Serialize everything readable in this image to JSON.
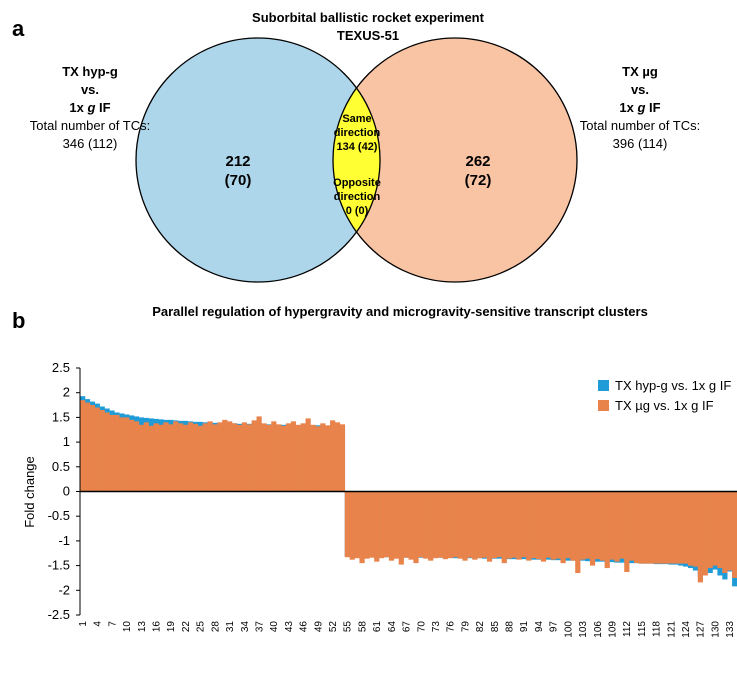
{
  "venn": {
    "panel_label": "a",
    "title": [
      "Suborbital ballistic rocket experiment",
      "TEXUS-51"
    ],
    "left": {
      "title": "TX hyp-g",
      "vs": "vs.",
      "condition": [
        "1x",
        "g",
        "IF"
      ],
      "total_label": "Total number of TCs:",
      "total": "346 (112)",
      "count": "212",
      "count_sub": "(70)"
    },
    "right": {
      "title": "TX µg",
      "vs": "vs.",
      "condition": [
        "1x",
        "g",
        "IF"
      ],
      "total_label": "Total number of TCs:",
      "total": "396 (114)",
      "count": "262",
      "count_sub": "(72)"
    },
    "overlap": {
      "same": [
        "Same",
        "direction"
      ],
      "same_count": "134 (42)",
      "opposite": [
        "Opposite",
        "direction"
      ],
      "opposite_count": "0 (0)"
    }
  },
  "chart_data": {
    "type": "bar",
    "panel_label": "b",
    "title": "Parallel regulation of hypergravity and microgravity-sensitive transcript clusters",
    "y_label": "Fold change",
    "categories": [
      1,
      null,
      null,
      4,
      null,
      null,
      7,
      null,
      null,
      10,
      null,
      null,
      13,
      null,
      null,
      16,
      null,
      null,
      19,
      null,
      null,
      22,
      null,
      null,
      25,
      null,
      null,
      28,
      null,
      null,
      31,
      null,
      null,
      34,
      null,
      null,
      37,
      null,
      null,
      40,
      null,
      null,
      43,
      null,
      null,
      46,
      null,
      null,
      49,
      null,
      null,
      52,
      null,
      null,
      55,
      null,
      null,
      58,
      null,
      null,
      61,
      null,
      null,
      64,
      null,
      null,
      67,
      null,
      null,
      70,
      null,
      null,
      73,
      null,
      null,
      76,
      null,
      null,
      79,
      null,
      null,
      82,
      null,
      null,
      85,
      null,
      null,
      88,
      null,
      null,
      91,
      null,
      null,
      94,
      null,
      null,
      97,
      null,
      null,
      100,
      null,
      null,
      103,
      null,
      null,
      106,
      null,
      null,
      109,
      null,
      null,
      112,
      null,
      null,
      115,
      null,
      null,
      118,
      null,
      null,
      121,
      null,
      null,
      124,
      null,
      null,
      127,
      null,
      null,
      130,
      null,
      null,
      133,
      null
    ],
    "series": [
      {
        "name": "TX hyp-g vs. 1x g IF",
        "color": "#1f9bd7",
        "values": [
          1.93,
          1.87,
          1.82,
          1.78,
          1.72,
          1.68,
          1.64,
          1.6,
          1.58,
          1.56,
          1.54,
          1.52,
          1.5,
          1.49,
          1.48,
          1.47,
          1.46,
          1.45,
          1.45,
          1.44,
          1.43,
          1.43,
          1.42,
          1.41,
          1.41,
          1.4,
          1.4,
          1.39,
          1.39,
          1.38,
          1.38,
          1.38,
          1.37,
          1.37,
          1.37,
          1.36,
          1.36,
          1.36,
          1.36,
          1.35,
          1.35,
          1.35,
          1.35,
          1.35,
          1.34,
          1.34,
          1.34,
          1.34,
          1.34,
          1.33,
          1.33,
          1.33,
          1.33,
          1.32,
          -1.32,
          -1.32,
          -1.32,
          -1.33,
          -1.33,
          -1.33,
          -1.33,
          -1.33,
          -1.33,
          -1.33,
          -1.34,
          -1.34,
          -1.34,
          -1.34,
          -1.34,
          -1.34,
          -1.34,
          -1.34,
          -1.34,
          -1.34,
          -1.34,
          -1.34,
          -1.35,
          -1.35,
          -1.35,
          -1.35,
          -1.35,
          -1.35,
          -1.36,
          -1.36,
          -1.36,
          -1.36,
          -1.36,
          -1.37,
          -1.37,
          -1.37,
          -1.37,
          -1.37,
          -1.38,
          -1.38,
          -1.38,
          -1.38,
          -1.39,
          -1.39,
          -1.39,
          -1.4,
          -1.4,
          -1.4,
          -1.4,
          -1.41,
          -1.41,
          -1.42,
          -1.42,
          -1.43,
          -1.43,
          -1.44,
          -1.44,
          -1.45,
          -1.45,
          -1.45,
          -1.46,
          -1.46,
          -1.46,
          -1.47,
          -1.47,
          -1.47,
          -1.48,
          -1.48,
          -1.5,
          -1.52,
          -1.55,
          -1.6,
          -1.72,
          -1.6,
          -1.65,
          -1.58,
          -1.7,
          -1.78,
          -1.62,
          -1.92
        ]
      },
      {
        "name": "TX µg vs. 1x g IF",
        "color": "#e8834b",
        "values": [
          1.85,
          1.8,
          1.75,
          1.7,
          1.65,
          1.6,
          1.55,
          1.55,
          1.5,
          1.5,
          1.45,
          1.42,
          1.35,
          1.4,
          1.33,
          1.38,
          1.35,
          1.4,
          1.36,
          1.42,
          1.38,
          1.35,
          1.4,
          1.37,
          1.33,
          1.38,
          1.42,
          1.36,
          1.4,
          1.45,
          1.42,
          1.38,
          1.35,
          1.4,
          1.36,
          1.44,
          1.52,
          1.38,
          1.35,
          1.42,
          1.36,
          1.33,
          1.38,
          1.42,
          1.35,
          1.38,
          1.48,
          1.35,
          1.32,
          1.38,
          1.34,
          1.44,
          1.4,
          1.36,
          -1.33,
          -1.38,
          -1.35,
          -1.45,
          -1.36,
          -1.34,
          -1.42,
          -1.35,
          -1.33,
          -1.4,
          -1.36,
          -1.48,
          -1.34,
          -1.38,
          -1.45,
          -1.33,
          -1.36,
          -1.4,
          -1.35,
          -1.34,
          -1.37,
          -1.35,
          -1.33,
          -1.36,
          -1.4,
          -1.34,
          -1.38,
          -1.35,
          -1.34,
          -1.42,
          -1.35,
          -1.33,
          -1.45,
          -1.36,
          -1.34,
          -1.38,
          -1.33,
          -1.4,
          -1.35,
          -1.37,
          -1.42,
          -1.34,
          -1.38,
          -1.36,
          -1.45,
          -1.35,
          -1.4,
          -1.65,
          -1.38,
          -1.36,
          -1.5,
          -1.37,
          -1.4,
          -1.55,
          -1.38,
          -1.42,
          -1.36,
          -1.63,
          -1.4,
          -1.45,
          -1.46,
          -1.46,
          -1.46,
          -1.46,
          -1.46,
          -1.46,
          -1.46,
          -1.46,
          -1.46,
          -1.46,
          -1.5,
          -1.52,
          -1.84,
          -1.7,
          -1.55,
          -1.5,
          -1.55,
          -1.65,
          -1.6,
          -1.75
        ]
      }
    ],
    "ylim": [
      -2.5,
      2.5
    ],
    "yticks": [
      2.5,
      2,
      1.5,
      1,
      0.5,
      0,
      -0.5,
      -1,
      -1.5,
      -2,
      -2.5
    ],
    "grid": false,
    "legend": "upper right"
  }
}
